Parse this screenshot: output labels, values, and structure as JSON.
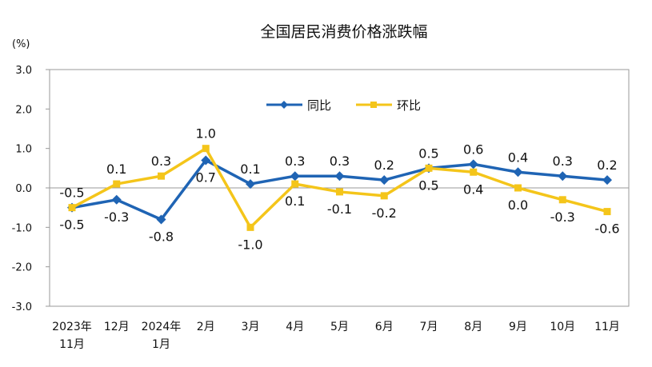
{
  "chart_data": {
    "type": "line",
    "title": "全国居民消费价格涨跌幅",
    "unit_label": "(%)",
    "ylim": [
      -3.0,
      3.0
    ],
    "yticks": [
      "3.0",
      "2.0",
      "1.0",
      "0.0",
      "-1.0",
      "-2.0",
      "-3.0"
    ],
    "categories": [
      [
        "2023年",
        "11月"
      ],
      [
        "12月"
      ],
      [
        "2024年",
        "1月"
      ],
      [
        "2月"
      ],
      [
        "3月"
      ],
      [
        "4月"
      ],
      [
        "5月"
      ],
      [
        "6月"
      ],
      [
        "7月"
      ],
      [
        "8月"
      ],
      [
        "9月"
      ],
      [
        "10月"
      ],
      [
        "11月"
      ]
    ],
    "legend_position": "top-center",
    "grid": false,
    "series": [
      {
        "name": "同比",
        "color": "#1F64B4",
        "marker": "diamond",
        "values": [
          -0.5,
          -0.3,
          -0.8,
          0.7,
          0.1,
          0.3,
          0.3,
          0.2,
          0.5,
          0.6,
          0.4,
          0.3,
          0.2
        ],
        "labels": [
          "-0.5",
          "-0.3",
          "-0.8",
          "0.7",
          "0.1",
          "0.3",
          "0.3",
          "0.2",
          "0.5",
          "0.6",
          "0.4",
          "0.3",
          "0.2"
        ]
      },
      {
        "name": "环比",
        "color": "#F4C51A",
        "marker": "square",
        "values": [
          -0.5,
          0.1,
          0.3,
          1.0,
          -1.0,
          0.1,
          -0.1,
          -0.2,
          0.5,
          0.4,
          0.0,
          -0.3,
          -0.6
        ],
        "labels": [
          "-0.5",
          "0.1",
          "0.3",
          "1.0",
          "-1.0",
          "0.1",
          "-0.1",
          "-0.2",
          "0.5",
          "0.4",
          "0.0",
          "-0.3",
          "-0.6"
        ]
      }
    ]
  }
}
